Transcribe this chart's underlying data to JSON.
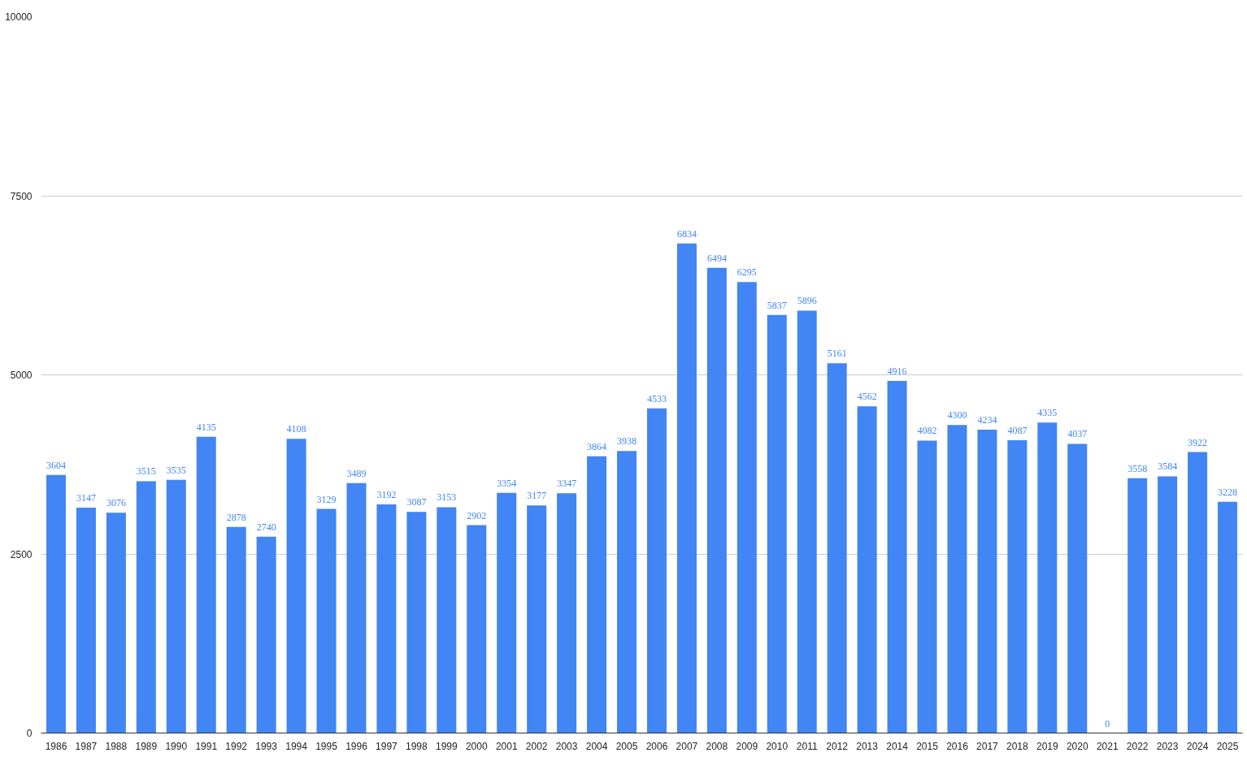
{
  "chart_data": {
    "type": "bar",
    "categories": [
      "1986",
      "1987",
      "1988",
      "1989",
      "1990",
      "1991",
      "1992",
      "1993",
      "1994",
      "1995",
      "1996",
      "1997",
      "1998",
      "1999",
      "2000",
      "2001",
      "2002",
      "2003",
      "2004",
      "2005",
      "2006",
      "2007",
      "2008",
      "2009",
      "2010",
      "2011",
      "2012",
      "2013",
      "2014",
      "2015",
      "2016",
      "2017",
      "2018",
      "2019",
      "2020",
      "2021",
      "2022",
      "2023",
      "2024",
      "2025"
    ],
    "values": [
      3604,
      3147,
      3076,
      3515,
      3535,
      4135,
      2878,
      2740,
      4108,
      3129,
      3489,
      3192,
      3087,
      3153,
      2902,
      3354,
      3177,
      3347,
      3864,
      3938,
      4533,
      6834,
      6494,
      6295,
      5837,
      5896,
      5161,
      4562,
      4916,
      4082,
      4300,
      4234,
      4087,
      4335,
      4037,
      0,
      3558,
      3584,
      3922,
      3228
    ],
    "color": "#4285f4",
    "ylim": [
      0,
      10000
    ],
    "yticks": [
      0,
      2500,
      5000,
      7500,
      10000
    ],
    "grid": "y",
    "data_labels": true
  }
}
